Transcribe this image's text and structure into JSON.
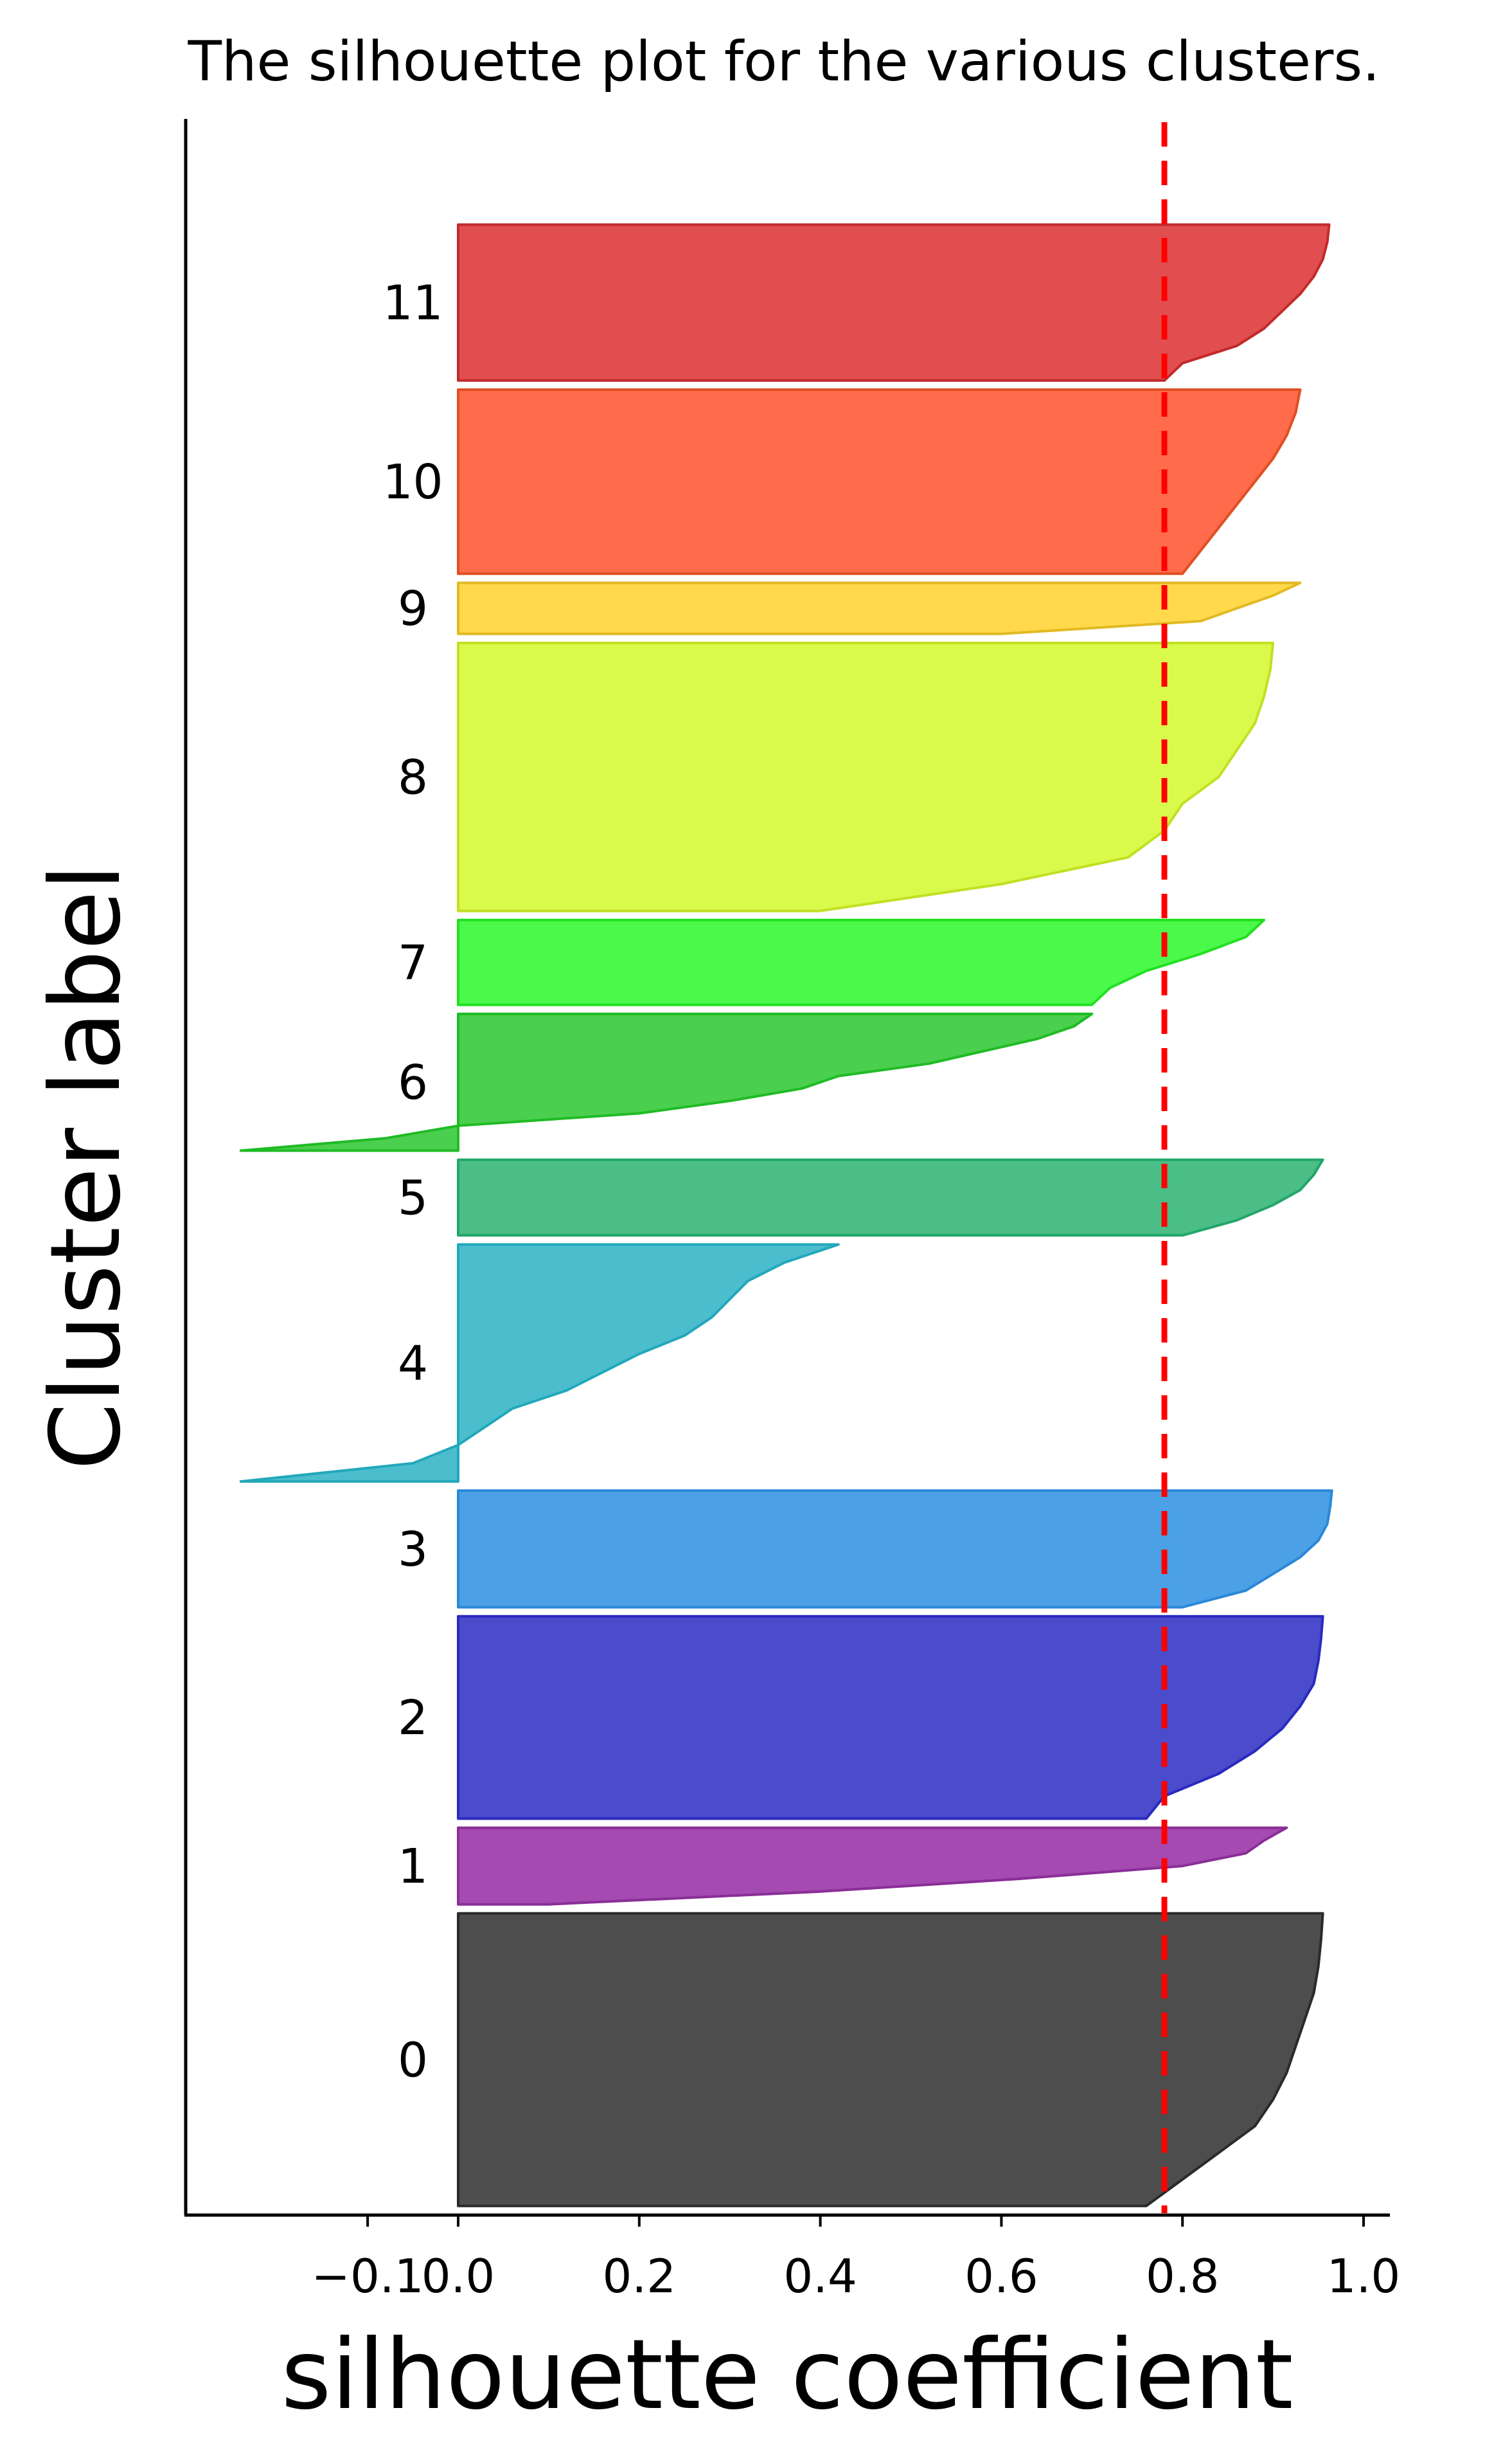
{
  "chart_data": {
    "type": "area",
    "title": "The silhouette plot for the various clusters.",
    "xlabel": "silhouette coefficient",
    "ylabel": "Cluster label",
    "xlim": [
      -0.3,
      1.03
    ],
    "x_ticks": [
      {
        "value": -0.1,
        "label": "−0.1"
      },
      {
        "value": 0.0,
        "label": "0.0"
      },
      {
        "value": 0.2,
        "label": "0.2"
      },
      {
        "value": 0.4,
        "label": "0.4"
      },
      {
        "value": 0.6,
        "label": "0.6"
      },
      {
        "value": 0.8,
        "label": "0.8"
      },
      {
        "value": 1.0,
        "label": "1.0"
      }
    ],
    "average_silhouette": 0.78,
    "grid": false,
    "clusters": [
      {
        "label": "0",
        "color": "#4d4d4d",
        "edge": "#2a2a2a",
        "range": [
          10,
          331
        ],
        "values": [
          0.955,
          0.953,
          0.95,
          0.945,
          0.935,
          0.925,
          0.915,
          0.9,
          0.88,
          0.84,
          0.8,
          0.76
        ]
      },
      {
        "label": "1",
        "color": "#a44ab0",
        "edge": "#8a2e98",
        "range": [
          341,
          425
        ],
        "values": [
          0.915,
          0.89,
          0.87,
          0.8,
          0.62,
          0.4,
          0.1
        ]
      },
      {
        "label": "2",
        "color": "#4b4ccc",
        "edge": "#2a2ac0",
        "range": [
          435,
          657
        ],
        "values": [
          0.955,
          0.953,
          0.95,
          0.945,
          0.93,
          0.91,
          0.88,
          0.84,
          0.78,
          0.76
        ]
      },
      {
        "label": "3",
        "color": "#4ca0e6",
        "edge": "#2a88d8",
        "range": [
          667,
          795
        ],
        "values": [
          0.965,
          0.963,
          0.96,
          0.95,
          0.93,
          0.9,
          0.87,
          0.8
        ]
      },
      {
        "label": "4",
        "color": "#4bbdcd",
        "edge": "#22a8bb",
        "range": [
          805,
          1065
        ],
        "values": [
          0.42,
          0.36,
          0.32,
          0.3,
          0.28,
          0.25,
          0.2,
          0.16,
          0.12,
          0.06,
          0.03,
          0.0,
          -0.05,
          -0.24
        ]
      },
      {
        "label": "5",
        "color": "#4bbd87",
        "edge": "#22a66a",
        "range": [
          1075,
          1158
        ],
        "values": [
          0.955,
          0.945,
          0.93,
          0.9,
          0.86,
          0.8
        ]
      },
      {
        "label": "6",
        "color": "#4bcf4f",
        "edge": "#20bb25",
        "range": [
          1168,
          1318
        ],
        "values": [
          0.7,
          0.68,
          0.64,
          0.58,
          0.52,
          0.42,
          0.38,
          0.3,
          0.2,
          0.0,
          -0.08,
          -0.24
        ]
      },
      {
        "label": "7",
        "color": "#4bf94b",
        "edge": "#22e022",
        "range": [
          1328,
          1421
        ],
        "values": [
          0.89,
          0.87,
          0.82,
          0.76,
          0.72,
          0.7
        ]
      },
      {
        "label": "8",
        "color": "#d9f94b",
        "edge": "#c2e022",
        "range": [
          1431,
          1725
        ],
        "values": [
          0.9,
          0.897,
          0.89,
          0.88,
          0.86,
          0.84,
          0.8,
          0.78,
          0.74,
          0.6,
          0.4
        ]
      },
      {
        "label": "9",
        "color": "#ffd94b",
        "edge": "#e0ba22",
        "range": [
          1735,
          1791
        ],
        "values": [
          0.93,
          0.9,
          0.86,
          0.82,
          0.6
        ]
      },
      {
        "label": "10",
        "color": "#ff6b4b",
        "edge": "#e04f22",
        "range": [
          1801,
          2003
        ],
        "values": [
          0.93,
          0.925,
          0.915,
          0.9,
          0.88,
          0.86,
          0.84,
          0.82,
          0.8
        ]
      },
      {
        "label": "11",
        "color": "#e14e4f",
        "edge": "#c22a2a",
        "range": [
          2013,
          2184
        ],
        "values": [
          0.962,
          0.96,
          0.955,
          0.945,
          0.93,
          0.91,
          0.89,
          0.86,
          0.8,
          0.78
        ]
      }
    ],
    "ylim": [
      0,
      2300
    ],
    "average_line_color": "#ff0000"
  }
}
